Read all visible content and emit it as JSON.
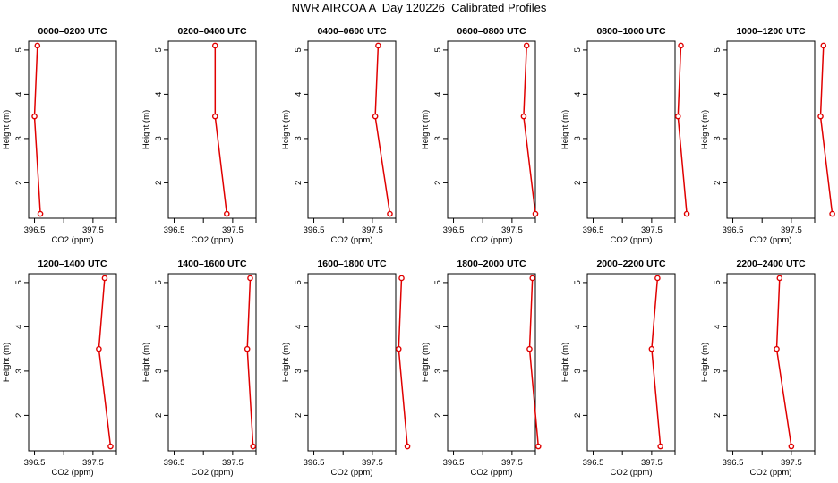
{
  "title": "NWR AIRCOA A  Day 120226  Calibrated Profiles",
  "colors": {
    "line": "#e00000",
    "axis": "#000000"
  },
  "chart_data": [
    {
      "type": "line",
      "title": "0000–0200 UTC",
      "xlabel": "CO2 (ppm)",
      "ylabel": "Height (m)",
      "xlim": [
        396.4,
        397.9
      ],
      "ylim": [
        1.2,
        5.2
      ],
      "xticks": [
        "396.5",
        "397.5"
      ],
      "yticks": [
        "2",
        "3",
        "4",
        "5"
      ],
      "series": [
        {
          "x": [
            396.6,
            396.5,
            396.55
          ],
          "y": [
            1.3,
            3.5,
            5.1
          ]
        }
      ]
    },
    {
      "type": "line",
      "title": "0200–0400 UTC",
      "xlabel": "CO2 (ppm)",
      "ylabel": "Height (m)",
      "xlim": [
        396.4,
        397.9
      ],
      "ylim": [
        1.2,
        5.2
      ],
      "xticks": [
        "396.5",
        "397.5"
      ],
      "yticks": [
        "2",
        "3",
        "4",
        "5"
      ],
      "series": [
        {
          "x": [
            397.4,
            397.2,
            397.2
          ],
          "y": [
            1.3,
            3.5,
            5.1
          ]
        }
      ]
    },
    {
      "type": "line",
      "title": "0400–0600 UTC",
      "xlabel": "CO2 (ppm)",
      "ylabel": "Height (m)",
      "xlim": [
        396.4,
        397.9
      ],
      "ylim": [
        1.2,
        5.2
      ],
      "xticks": [
        "396.5",
        "397.5"
      ],
      "yticks": [
        "2",
        "3",
        "4",
        "5"
      ],
      "series": [
        {
          "x": [
            397.8,
            397.55,
            397.6
          ],
          "y": [
            1.3,
            3.5,
            5.1
          ]
        }
      ]
    },
    {
      "type": "line",
      "title": "0600–0800 UTC",
      "xlabel": "CO2 (ppm)",
      "ylabel": "Height (m)",
      "xlim": [
        396.4,
        397.9
      ],
      "ylim": [
        1.2,
        5.2
      ],
      "xticks": [
        "396.5",
        "397.5"
      ],
      "yticks": [
        "2",
        "3",
        "4",
        "5"
      ],
      "series": [
        {
          "x": [
            397.9,
            397.7,
            397.75
          ],
          "y": [
            1.3,
            3.5,
            5.1
          ]
        }
      ]
    },
    {
      "type": "line",
      "title": "0800–1000 UTC",
      "xlabel": "CO2 (ppm)",
      "ylabel": "Height (m)",
      "xlim": [
        396.4,
        397.9
      ],
      "ylim": [
        1.2,
        5.2
      ],
      "xticks": [
        "396.5",
        "397.5"
      ],
      "yticks": [
        "2",
        "3",
        "4",
        "5"
      ],
      "series": [
        {
          "x": [
            398.1,
            397.95,
            398.0
          ],
          "y": [
            1.3,
            3.5,
            5.1
          ]
        }
      ]
    },
    {
      "type": "line",
      "title": "1000–1200 UTC",
      "xlabel": "CO2 (ppm)",
      "ylabel": "Height (m)",
      "xlim": [
        396.4,
        397.9
      ],
      "ylim": [
        1.2,
        5.2
      ],
      "xticks": [
        "396.5",
        "397.5"
      ],
      "yticks": [
        "2",
        "3",
        "4",
        "5"
      ],
      "series": [
        {
          "x": [
            398.2,
            398.0,
            398.05
          ],
          "y": [
            1.3,
            3.5,
            5.1
          ]
        }
      ]
    },
    {
      "type": "line",
      "title": "1200–1400 UTC",
      "xlabel": "CO2 (ppm)",
      "ylabel": "Height (m)",
      "xlim": [
        396.4,
        397.9
      ],
      "ylim": [
        1.2,
        5.2
      ],
      "xticks": [
        "396.5",
        "397.5"
      ],
      "yticks": [
        "2",
        "3",
        "4",
        "5"
      ],
      "series": [
        {
          "x": [
            397.8,
            397.6,
            397.7
          ],
          "y": [
            1.3,
            3.5,
            5.1
          ]
        }
      ]
    },
    {
      "type": "line",
      "title": "1400–1600 UTC",
      "xlabel": "CO2 (ppm)",
      "ylabel": "Height (m)",
      "xlim": [
        396.4,
        397.9
      ],
      "ylim": [
        1.2,
        5.2
      ],
      "xticks": [
        "396.5",
        "397.5"
      ],
      "yticks": [
        "2",
        "3",
        "4",
        "5"
      ],
      "series": [
        {
          "x": [
            397.85,
            397.75,
            397.8
          ],
          "y": [
            1.3,
            3.5,
            5.1
          ]
        }
      ]
    },
    {
      "type": "line",
      "title": "1600–1800 UTC",
      "xlabel": "CO2 (ppm)",
      "ylabel": "Height (m)",
      "xlim": [
        396.4,
        397.9
      ],
      "ylim": [
        1.2,
        5.2
      ],
      "xticks": [
        "396.5",
        "397.5"
      ],
      "yticks": [
        "2",
        "3",
        "4",
        "5"
      ],
      "series": [
        {
          "x": [
            398.1,
            397.95,
            398.0
          ],
          "y": [
            1.3,
            3.5,
            5.1
          ]
        }
      ]
    },
    {
      "type": "line",
      "title": "1800–2000 UTC",
      "xlabel": "CO2 (ppm)",
      "ylabel": "Height (m)",
      "xlim": [
        396.4,
        397.9
      ],
      "ylim": [
        1.2,
        5.2
      ],
      "xticks": [
        "396.5",
        "397.5"
      ],
      "yticks": [
        "2",
        "3",
        "4",
        "5"
      ],
      "series": [
        {
          "x": [
            397.95,
            397.8,
            397.85
          ],
          "y": [
            1.3,
            3.5,
            5.1
          ]
        }
      ]
    },
    {
      "type": "line",
      "title": "2000–2200 UTC",
      "xlabel": "CO2 (ppm)",
      "ylabel": "Height (m)",
      "xlim": [
        396.4,
        397.9
      ],
      "ylim": [
        1.2,
        5.2
      ],
      "xticks": [
        "396.5",
        "397.5"
      ],
      "yticks": [
        "2",
        "3",
        "4",
        "5"
      ],
      "series": [
        {
          "x": [
            397.65,
            397.5,
            397.6
          ],
          "y": [
            1.3,
            3.5,
            5.1
          ]
        }
      ]
    },
    {
      "type": "line",
      "title": "2200–2400 UTC",
      "xlabel": "CO2 (ppm)",
      "ylabel": "Height (m)",
      "xlim": [
        396.4,
        397.9
      ],
      "ylim": [
        1.2,
        5.2
      ],
      "xticks": [
        "396.5",
        "397.5"
      ],
      "yticks": [
        "2",
        "3",
        "4",
        "5"
      ],
      "series": [
        {
          "x": [
            397.5,
            397.25,
            397.3
          ],
          "y": [
            1.3,
            3.5,
            5.1
          ]
        }
      ]
    }
  ]
}
